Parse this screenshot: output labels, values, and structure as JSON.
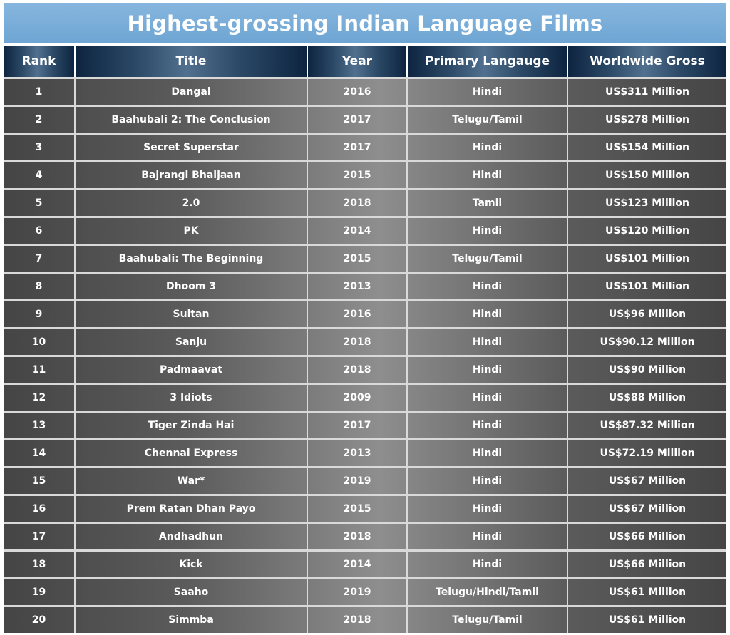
{
  "chart_data": {
    "type": "table",
    "title": "Highest-grossing Indian Language Films",
    "columns": [
      "Rank",
      "Title",
      "Year",
      "Primary Langauge",
      "Worldwide Gross"
    ],
    "rows": [
      [
        "1",
        "Dangal",
        "2016",
        "Hindi",
        "US$311 Million"
      ],
      [
        "2",
        "Baahubali 2: The Conclusion",
        "2017",
        "Telugu/Tamil",
        "US$278 Million"
      ],
      [
        "3",
        "Secret Superstar",
        "2017",
        "Hindi",
        "US$154 Million"
      ],
      [
        "4",
        "Bajrangi Bhaijaan",
        "2015",
        "Hindi",
        "US$150 Million"
      ],
      [
        "5",
        "2.0",
        "2018",
        "Tamil",
        "US$123 Million"
      ],
      [
        "6",
        "PK",
        "2014",
        "Hindi",
        "US$120 Million"
      ],
      [
        "7",
        "Baahubali: The Beginning",
        "2015",
        "Telugu/Tamil",
        "US$101 Million"
      ],
      [
        "8",
        "Dhoom 3",
        "2013",
        "Hindi",
        "US$101 Million"
      ],
      [
        "9",
        "Sultan",
        "2016",
        "Hindi",
        "US$96 Million"
      ],
      [
        "10",
        "Sanju",
        "2018",
        "Hindi",
        "US$90.12 Million"
      ],
      [
        "11",
        "Padmaavat",
        "2018",
        "Hindi",
        "US$90 Million"
      ],
      [
        "12",
        "3 Idiots",
        "2009",
        "Hindi",
        "US$88 Million"
      ],
      [
        "13",
        "Tiger Zinda Hai",
        "2017",
        "Hindi",
        "US$87.32 Million"
      ],
      [
        "14",
        "Chennai Express",
        "2013",
        "Hindi",
        "US$72.19 Million"
      ],
      [
        "15",
        "War*",
        "2019",
        "Hindi",
        "US$67 Million"
      ],
      [
        "16",
        "Prem Ratan Dhan Payo",
        "2015",
        "Hindi",
        "US$67 Million"
      ],
      [
        "17",
        "Andhadhun",
        "2018",
        "Hindi",
        "US$66 Million"
      ],
      [
        "18",
        "Kick",
        "2014",
        "Hindi",
        "US$66 Million"
      ],
      [
        "19",
        "Saaho",
        "2019",
        "Telugu/Hindi/Tamil",
        "US$61 Million"
      ],
      [
        "20",
        "Simmba",
        "2018",
        "Telugu/Tamil",
        "US$61 Million"
      ]
    ]
  }
}
